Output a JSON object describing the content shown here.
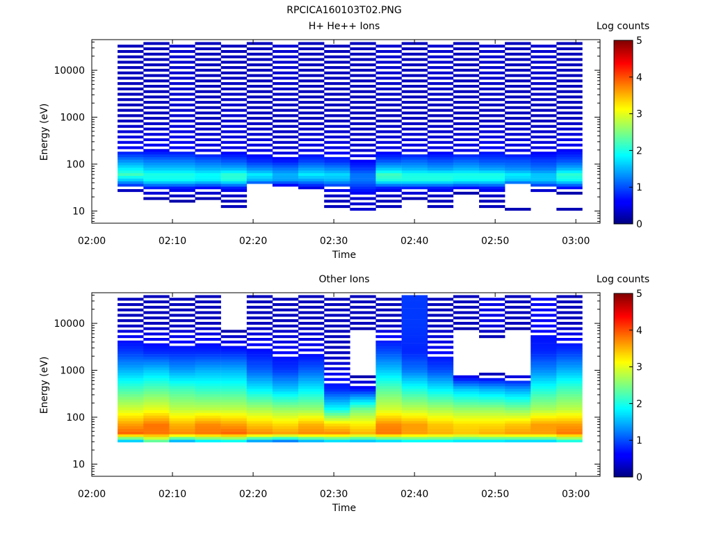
{
  "figure": {
    "title": "RPCICA160103T02.PNG"
  },
  "colorbar": {
    "label": "Log counts",
    "ticks": [
      "0",
      "1",
      "2",
      "3",
      "4",
      "5"
    ],
    "range": [
      0,
      5
    ],
    "colormap": "jet"
  },
  "chart_data": [
    {
      "type": "heatmap",
      "title": "H+ He++ Ions",
      "xlabel": "Time",
      "ylabel": "Energy (eV)",
      "x_tick_labels": [
        "02:00",
        "02:10",
        "02:20",
        "02:30",
        "02:40",
        "02:50",
        "03:00"
      ],
      "y_tick_labels": [
        "10",
        "100",
        "1000",
        "10000"
      ],
      "y_scale": "log",
      "x_range": [
        "02:00",
        "03:03"
      ],
      "y_range": [
        5.5,
        45000
      ],
      "colorbar_range": [
        0,
        5
      ],
      "time_start_minutes": [
        3.2,
        6.4,
        9.6,
        12.8,
        16.0,
        19.2,
        22.4,
        25.6,
        28.8,
        32.0,
        35.2,
        38.4,
        41.6,
        44.8,
        48.0,
        51.2,
        54.4,
        57.6
      ],
      "spectrum_summary": [
        {
          "energy_eV": 10,
          "log_counts": [
            0.0,
            0.0,
            0.0,
            0.0,
            0.3,
            0.0,
            0.0,
            0.0,
            0.3,
            0.4,
            0.3,
            0.0,
            0.3,
            0.0,
            0.3,
            0.3,
            0.0,
            0.3
          ]
        },
        {
          "energy_eV": 20,
          "log_counts": [
            0.0,
            0.3,
            0.3,
            0.3,
            0.3,
            0.0,
            0.0,
            0.0,
            0.3,
            0.4,
            0.3,
            0.3,
            0.3,
            0.0,
            0.3,
            0.0,
            0.0,
            0.0
          ]
        },
        {
          "energy_eV": 30,
          "log_counts": [
            0.4,
            0.6,
            0.6,
            0.5,
            0.6,
            0.0,
            0.0,
            0.4,
            0.6,
            0.8,
            0.6,
            0.6,
            0.6,
            0.5,
            0.6,
            0.0,
            0.5,
            0.5
          ]
        },
        {
          "energy_eV": 45,
          "log_counts": [
            1.6,
            1.9,
            1.9,
            1.8,
            2.0,
            1.5,
            1.4,
            1.4,
            1.5,
            1.2,
            2.0,
            2.0,
            2.0,
            1.9,
            1.9,
            1.6,
            1.6,
            1.9
          ]
        },
        {
          "energy_eV": 60,
          "log_counts": [
            2.2,
            2.0,
            2.0,
            1.9,
            2.1,
            1.8,
            1.5,
            1.8,
            1.7,
            1.2,
            2.2,
            2.0,
            2.0,
            2.0,
            2.0,
            1.8,
            1.6,
            2.1
          ]
        },
        {
          "energy_eV": 80,
          "log_counts": [
            1.8,
            1.6,
            1.6,
            1.5,
            1.5,
            1.3,
            1.2,
            1.4,
            1.3,
            0.9,
            1.6,
            1.5,
            1.4,
            1.5,
            1.4,
            1.3,
            1.2,
            1.5
          ]
        },
        {
          "energy_eV": 120,
          "log_counts": [
            1.3,
            1.2,
            1.2,
            1.1,
            1.0,
            0.8,
            0.7,
            0.9,
            0.8,
            0.6,
            1.0,
            1.1,
            1.0,
            1.1,
            1.0,
            1.0,
            0.9,
            1.0
          ]
        },
        {
          "energy_eV": 200,
          "log_counts": [
            0.6,
            0.6,
            0.6,
            0.5,
            0.5,
            0.5,
            0.4,
            0.5,
            0.5,
            0.4,
            0.5,
            0.5,
            0.5,
            0.5,
            0.6,
            0.5,
            0.5,
            0.6
          ]
        },
        {
          "energy_eV": 1000,
          "log_counts": [
            0.3,
            0.3,
            0.4,
            0.3,
            0.4,
            0.3,
            0.3,
            0.3,
            0.3,
            0.3,
            0.3,
            0.3,
            0.3,
            0.3,
            0.3,
            0.3,
            0.3,
            0.3
          ]
        },
        {
          "energy_eV": 10000,
          "log_counts": [
            0.3,
            0.3,
            0.4,
            0.3,
            0.3,
            0.3,
            0.4,
            0.3,
            0.3,
            0.3,
            0.4,
            0.3,
            0.4,
            0.3,
            0.4,
            0.3,
            0.4,
            0.3
          ]
        }
      ]
    },
    {
      "type": "heatmap",
      "title": "Other Ions",
      "xlabel": "Time",
      "ylabel": "Energy (eV)",
      "x_tick_labels": [
        "02:00",
        "02:10",
        "02:20",
        "02:30",
        "02:40",
        "02:50",
        "03:00"
      ],
      "y_tick_labels": [
        "10",
        "100",
        "1000",
        "10000"
      ],
      "y_scale": "log",
      "x_range": [
        "02:00",
        "03:03"
      ],
      "y_range": [
        5.5,
        45000
      ],
      "colorbar_range": [
        0,
        5
      ],
      "time_start_minutes": [
        3.2,
        6.4,
        9.6,
        12.8,
        16.0,
        19.2,
        22.4,
        25.6,
        28.8,
        32.0,
        35.2,
        38.4,
        41.6,
        44.8,
        48.0,
        51.2,
        54.4,
        57.6
      ],
      "spectrum_summary": [
        {
          "energy_eV": 30,
          "log_counts": [
            1.4,
            2.2,
            1.3,
            1.6,
            1.7,
            1.2,
            1.0,
            1.3,
            1.5,
            1.4,
            1.5,
            1.7,
            1.7,
            1.6,
            1.6,
            1.5,
            1.5,
            1.8
          ]
        },
        {
          "energy_eV": 45,
          "log_counts": [
            3.9,
            3.8,
            3.7,
            3.8,
            3.9,
            3.7,
            3.6,
            3.7,
            3.7,
            3.5,
            3.8,
            3.6,
            3.5,
            3.4,
            3.5,
            3.6,
            3.6,
            3.8
          ]
        },
        {
          "energy_eV": 70,
          "log_counts": [
            3.6,
            3.8,
            3.5,
            3.7,
            3.6,
            3.4,
            3.3,
            3.5,
            3.3,
            3.2,
            3.7,
            3.6,
            3.4,
            3.3,
            3.3,
            3.4,
            3.6,
            3.6
          ]
        },
        {
          "energy_eV": 150,
          "log_counts": [
            2.9,
            3.0,
            2.8,
            2.8,
            2.8,
            2.7,
            2.6,
            2.6,
            1.9,
            2.4,
            2.9,
            2.8,
            2.7,
            2.6,
            2.6,
            2.5,
            2.7,
            2.8
          ]
        },
        {
          "energy_eV": 400,
          "log_counts": [
            2.2,
            2.3,
            2.2,
            2.1,
            2.1,
            1.8,
            1.6,
            1.8,
            0.8,
            0.7,
            2.3,
            2.0,
            1.8,
            1.6,
            1.5,
            1.4,
            2.0,
            2.2
          ]
        },
        {
          "energy_eV": 1000,
          "log_counts": [
            1.5,
            1.6,
            1.4,
            1.5,
            1.5,
            1.1,
            0.9,
            1.1,
            0.5,
            0.0,
            1.6,
            1.2,
            1.0,
            0.0,
            0.0,
            0.0,
            1.3,
            1.5
          ]
        },
        {
          "energy_eV": 2500,
          "log_counts": [
            0.9,
            0.8,
            0.8,
            0.8,
            0.8,
            0.7,
            0.6,
            0.6,
            0.3,
            0.0,
            1.0,
            0.8,
            0.6,
            0.0,
            0.0,
            0.0,
            0.8,
            0.9
          ]
        },
        {
          "energy_eV": 10000,
          "log_counts": [
            0.3,
            0.3,
            0.3,
            0.3,
            0.0,
            0.3,
            0.3,
            0.3,
            0.3,
            0.3,
            0.3,
            0.9,
            0.3,
            0.3,
            0.5,
            0.3,
            0.6,
            0.3
          ]
        }
      ]
    }
  ]
}
